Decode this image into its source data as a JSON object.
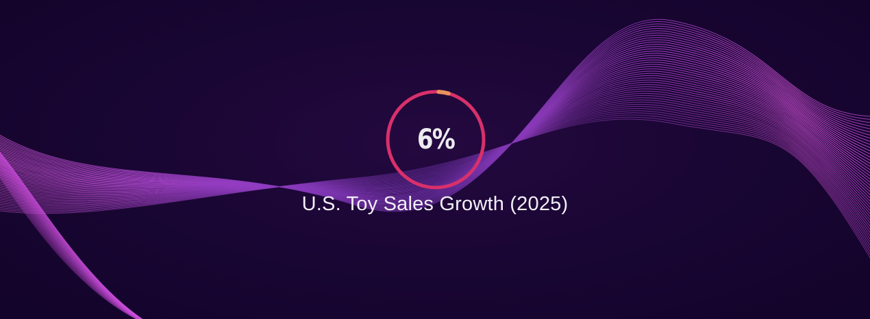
{
  "stat": {
    "value_label": "6%",
    "progress_fraction": 0.06,
    "caption": "U.S. Toy Sales Growth (2025)"
  },
  "colors": {
    "background": "#16052e",
    "wave_light": "#e45ce8",
    "wave_dark": "#5a2a8c",
    "ring": "#d9306b",
    "ring_progress": "#e8925c",
    "text": "#f2eef7"
  },
  "icons": {
    "background_art": "purple-wave-lines"
  }
}
